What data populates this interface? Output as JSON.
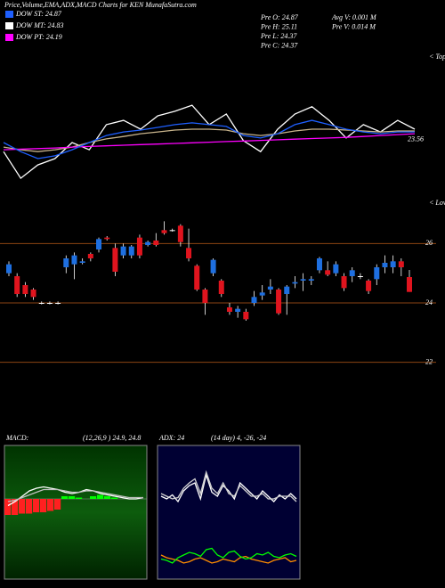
{
  "title": "Price,Volume,EMA,ADX,MACD Charts for KEN  MunafaSutra.com",
  "legend": [
    {
      "label": "DOW ST: 24.87",
      "color": "#1e5fff"
    },
    {
      "label": "DOW MT: 24.83",
      "color": "#ffffff"
    },
    {
      "label": "DOW PT: 24.19",
      "color": "#ff00ff"
    }
  ],
  "stats": [
    "Pre  O: 24.87",
    "Pre  H: 25.11",
    "Pre  L: 24.37",
    "Pre  C: 24.37",
    "Avg V: 0.001 M",
    "Pre  V: 0.014  M"
  ],
  "chart_data": [
    {
      "type": "line",
      "annotations": [
        "< Tops",
        "< Lows"
      ],
      "ylim": [
        21.4,
        26.4
      ],
      "marker_value": 23.56,
      "series": [
        {
          "color": "#ffffff",
          "values": [
            23.16,
            22.28,
            22.72,
            22.93,
            23.46,
            23.22,
            24.05,
            24.19,
            23.9,
            24.34,
            24.49,
            24.69,
            24.05,
            24.4,
            23.52,
            23.16,
            23.9,
            24.4,
            24.64,
            24.19,
            23.61,
            24.05,
            23.81,
            24.19,
            23.9
          ]
        },
        {
          "color": "#c8b48c",
          "values": [
            23.31,
            23.22,
            23.16,
            23.22,
            23.31,
            23.46,
            23.58,
            23.66,
            23.75,
            23.81,
            23.87,
            23.9,
            23.9,
            23.87,
            23.75,
            23.69,
            23.75,
            23.84,
            23.9,
            23.9,
            23.87,
            23.84,
            23.81,
            23.84,
            23.84
          ]
        },
        {
          "color": "#ff00ff",
          "values": [
            23.22,
            23.24,
            23.26,
            23.28,
            23.31,
            23.33,
            23.35,
            23.37,
            23.39,
            23.41,
            23.43,
            23.45,
            23.47,
            23.49,
            23.51,
            23.53,
            23.55,
            23.57,
            23.59,
            23.61,
            23.63,
            23.66,
            23.69,
            23.72,
            23.75
          ]
        },
        {
          "color": "#1e5fff",
          "values": [
            23.46,
            23.16,
            22.93,
            23.02,
            23.22,
            23.46,
            23.69,
            23.81,
            23.87,
            23.96,
            24.05,
            24.11,
            24.05,
            23.99,
            23.69,
            23.61,
            23.75,
            24.05,
            24.19,
            24.05,
            23.9,
            23.81,
            23.75,
            23.81,
            23.81
          ]
        }
      ]
    },
    {
      "type": "candlestick",
      "ylim": [
        21,
        27.3
      ],
      "yticks": [
        22,
        24,
        26
      ],
      "grid_color": "#8b4513",
      "up_color": "#1e6fe0",
      "down_color": "#e0141e",
      "flat_color": "#ffffff",
      "open": [
        25.0,
        24.9,
        24.6,
        24.45,
        24.0,
        24.0,
        24.0,
        25.2,
        25.3,
        25.35,
        25.65,
        25.8,
        26.2,
        25.85,
        25.6,
        25.6,
        26.2,
        25.95,
        26.1,
        26.45,
        26.45,
        26.6,
        25.85,
        25.25,
        24.45,
        25.0,
        24.75,
        23.85,
        23.7,
        23.7,
        24.0,
        24.25,
        24.45,
        24.45,
        24.3,
        24.65,
        24.75,
        24.75,
        25.1,
        25.1,
        25.0,
        24.9,
        24.9,
        24.9,
        24.75,
        24.8,
        25.2,
        25.2,
        25.4,
        24.87
      ],
      "high": [
        25.4,
        25.0,
        24.7,
        24.5,
        24.05,
        24.05,
        24.05,
        25.6,
        25.7,
        25.5,
        25.7,
        26.2,
        26.25,
        26.0,
        26.0,
        25.95,
        26.3,
        26.1,
        26.35,
        26.75,
        26.5,
        26.65,
        26.5,
        25.3,
        24.5,
        25.5,
        24.8,
        24.0,
        23.9,
        23.8,
        24.4,
        24.6,
        24.8,
        24.5,
        24.6,
        24.9,
        25.0,
        24.9,
        25.55,
        25.4,
        25.4,
        25.0,
        25.2,
        25.0,
        24.8,
        25.3,
        25.6,
        25.6,
        25.5,
        25.11
      ],
      "low": [
        24.9,
        24.2,
        24.2,
        24.1,
        23.95,
        23.95,
        23.95,
        25.0,
        24.8,
        25.3,
        25.4,
        25.7,
        26.1,
        24.9,
        25.5,
        25.5,
        25.5,
        25.9,
        25.9,
        26.3,
        26.4,
        25.9,
        25.4,
        24.4,
        23.6,
        24.9,
        24.2,
        23.6,
        23.5,
        23.4,
        23.9,
        24.1,
        24.3,
        23.6,
        23.6,
        24.5,
        24.4,
        24.6,
        25.0,
        24.9,
        24.9,
        24.4,
        24.7,
        24.8,
        24.3,
        24.6,
        25.0,
        25.0,
        24.9,
        24.37
      ],
      "close": [
        25.3,
        24.3,
        24.3,
        24.2,
        24.0,
        24.0,
        24.0,
        25.5,
        25.6,
        25.4,
        25.5,
        26.15,
        26.15,
        25.05,
        25.9,
        25.9,
        25.6,
        26.05,
        25.95,
        26.35,
        26.45,
        26.05,
        25.5,
        24.45,
        24.0,
        25.45,
        24.3,
        23.7,
        23.8,
        23.45,
        24.2,
        24.35,
        24.55,
        23.65,
        24.55,
        24.7,
        24.8,
        24.8,
        25.5,
        24.95,
        25.3,
        24.5,
        25.1,
        24.9,
        24.4,
        25.2,
        25.35,
        25.4,
        25.2,
        24.37
      ]
    },
    {
      "type": "macd",
      "title": "MACD:",
      "params": "(12,26,9 ) 24.9, 24.8",
      "ylim": [
        -0.6,
        0.4
      ],
      "pos_color": "#00ff00",
      "neg_color": "#ff2020",
      "histogram": [
        -0.12,
        -0.12,
        -0.11,
        -0.11,
        -0.1,
        -0.1,
        -0.09,
        -0.08,
        0.02,
        0.02,
        0.01,
        0.0,
        0.02,
        0.03,
        0.02,
        0.01,
        0.0,
        0.0,
        0.0,
        0.0
      ],
      "series": [
        {
          "color": "#ffffff",
          "values": [
            -0.05,
            -0.02,
            0.02,
            0.06,
            0.08,
            0.09,
            0.08,
            0.07,
            0.05,
            0.04,
            0.05,
            0.07,
            0.06,
            0.04,
            0.03,
            0.02,
            0.01,
            0.0,
            0.0,
            0.01
          ]
        },
        {
          "color": "#c0c0c0",
          "values": [
            -0.02,
            -0.01,
            0.01,
            0.03,
            0.05,
            0.07,
            0.07,
            0.07,
            0.06,
            0.05,
            0.05,
            0.06,
            0.06,
            0.05,
            0.04,
            0.03,
            0.02,
            0.01,
            0.01,
            0.01
          ]
        }
      ]
    },
    {
      "type": "adx",
      "title": "ADX: 24",
      "params": "(14 day) 4, -26, -24",
      "ylim": [
        0,
        100
      ],
      "series": [
        {
          "color": "#ffffff",
          "values": [
            62,
            60,
            63,
            58,
            66,
            70,
            72,
            60,
            78,
            65,
            62,
            70,
            66,
            60,
            72,
            68,
            64,
            60,
            66,
            62,
            58,
            63,
            60,
            64,
            60
          ]
        },
        {
          "color": "#d0d0d0",
          "values": [
            64,
            62,
            60,
            61,
            68,
            72,
            75,
            64,
            80,
            68,
            64,
            72,
            64,
            62,
            70,
            66,
            62,
            62,
            64,
            60,
            60,
            62,
            62,
            62,
            58
          ]
        },
        {
          "color": "#ff8c00",
          "values": [
            18,
            16,
            15,
            14,
            12,
            13,
            15,
            16,
            14,
            12,
            13,
            15,
            14,
            13,
            16,
            17,
            15,
            14,
            13,
            12,
            14,
            15,
            16,
            13,
            14
          ]
        },
        {
          "color": "#00ff00",
          "values": [
            15,
            14,
            12,
            16,
            18,
            20,
            19,
            17,
            22,
            23,
            18,
            16,
            20,
            21,
            17,
            15,
            16,
            19,
            18,
            20,
            17,
            16,
            18,
            19,
            17
          ]
        }
      ]
    }
  ]
}
